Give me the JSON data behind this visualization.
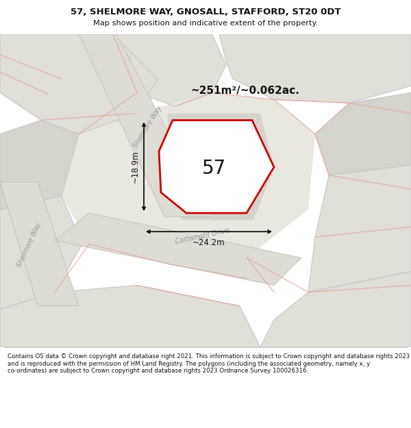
{
  "title": "57, SHELMORE WAY, GNOSALL, STAFFORD, ST20 0DT",
  "subtitle": "Map shows position and indicative extent of the property.",
  "footer": "Contains OS data © Crown copyright and database right 2021. This information is subject to Crown copyright and database rights 2023 and is reproduced with the permission of HM Land Registry. The polygons (including the associated geometry, namely x, y co-ordinates) are subject to Crown copyright and database rights 2023 Ordnance Survey 100026316.",
  "area_label": "~251m²/~0.062ac.",
  "number_label": "57",
  "dim_width": "~24.2m",
  "dim_height": "~18.9m",
  "road_label_upper": "Shelmore Way",
  "road_label_mid": "Cartwright Drive",
  "road_label_lower": "Shelmore Way",
  "plot_outline_color": "#cc0000",
  "map_bg": "#eeede8",
  "parcel_fill": "#e0dfd8",
  "parcel_dark": "#d5d4cc",
  "pink_line": "#e8a0a0",
  "gray_line": "#c8c8c8"
}
